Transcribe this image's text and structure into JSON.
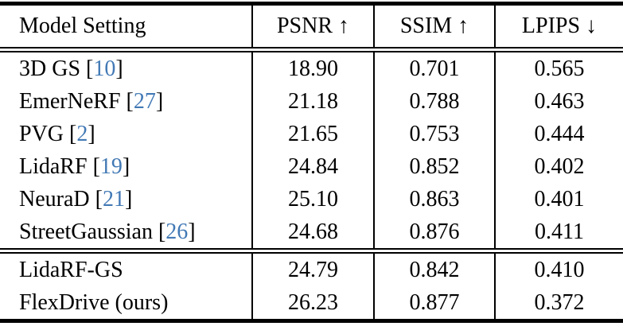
{
  "colors": {
    "citation_blue": "#4279b5",
    "rule_black": "#000000",
    "text_black": "#000000",
    "background": "#ffffff"
  },
  "table": {
    "brackets": {
      "open": "[",
      "close": "]"
    },
    "header": {
      "model_setting": "Model Setting",
      "psnr": "PSNR ↑",
      "ssim": "SSIM ↑",
      "lpips": "LPIPS ↓"
    },
    "groups": [
      {
        "rows": [
          {
            "model": "3D GS",
            "cite": "10",
            "psnr": "18.90",
            "ssim": "0.701",
            "lpips": "0.565"
          },
          {
            "model": "EmerNeRF",
            "cite": "27",
            "psnr": "21.18",
            "ssim": "0.788",
            "lpips": "0.463"
          },
          {
            "model": "PVG",
            "cite": "2",
            "psnr": "21.65",
            "ssim": "0.753",
            "lpips": "0.444"
          },
          {
            "model": "LidaRF",
            "cite": "19",
            "psnr": "24.84",
            "ssim": "0.852",
            "lpips": "0.402"
          },
          {
            "model": "NeuraD",
            "cite": "21",
            "psnr": "25.10",
            "ssim": "0.863",
            "lpips": "0.401"
          },
          {
            "model": "StreetGaussian",
            "cite": "26",
            "psnr": "24.68",
            "ssim": "0.876",
            "lpips": "0.411"
          }
        ]
      },
      {
        "rows": [
          {
            "model": "LidaRF-GS",
            "psnr": "24.79",
            "ssim": "0.842",
            "lpips": "0.410"
          },
          {
            "model": "FlexDrive (ours)",
            "psnr": "26.23",
            "ssim": "0.877",
            "lpips": "0.372"
          }
        ]
      }
    ]
  }
}
